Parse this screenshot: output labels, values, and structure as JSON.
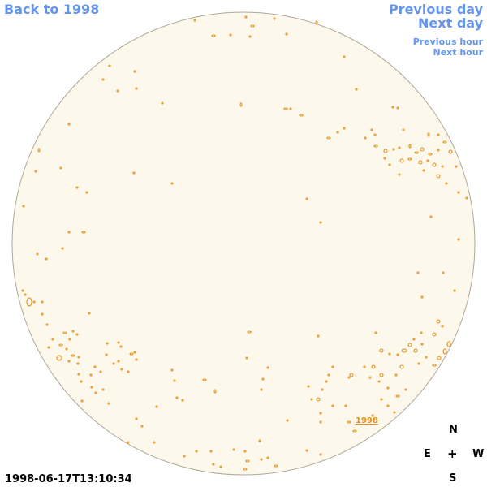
{
  "nav": {
    "back": "Back to 1998",
    "previous_day": "Previous day",
    "next_day": "Next day",
    "previous_hour": "Previous hour",
    "next_hour": "Next hour"
  },
  "map_label": "1998",
  "compass": {
    "north": "N",
    "east": "E",
    "center": "+",
    "west": "W",
    "south": "S"
  },
  "timestamp": "1998-06-17T13:10:34",
  "colors": {
    "disk_fill": "#fdf8ec",
    "disk_outline": "#b0a898",
    "contour": "#e69019",
    "link": "#6495ed"
  }
}
